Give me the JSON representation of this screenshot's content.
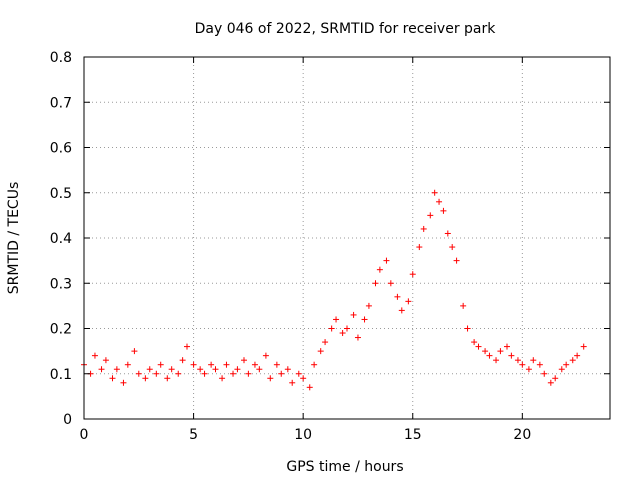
{
  "chart_data": {
    "type": "scatter",
    "title": "Day 046 of 2022, SRMTID for receiver park",
    "xlabel": "GPS time / hours",
    "ylabel": "SRMTID / TECUs",
    "xlim": [
      0,
      24
    ],
    "ylim": [
      0,
      0.8
    ],
    "xticks": [
      0,
      5,
      10,
      15,
      20
    ],
    "xtick_labels": [
      "0",
      "5",
      "10",
      "15",
      "20"
    ],
    "yticks": [
      0,
      0.1,
      0.2,
      0.3,
      0.4,
      0.5,
      0.6,
      0.7,
      0.8
    ],
    "ytick_labels": [
      "0",
      "0.1",
      "0.2",
      "0.3",
      "0.4",
      "0.5",
      "0.6",
      "0.7",
      "0.8"
    ],
    "grid": true,
    "marker": "plus",
    "marker_color": "#ff0000",
    "series": [
      {
        "name": "SRMTID",
        "x": [
          0.0,
          0.3,
          0.5,
          0.8,
          1.0,
          1.3,
          1.5,
          1.8,
          2.0,
          2.3,
          2.5,
          2.8,
          3.0,
          3.3,
          3.5,
          3.8,
          4.0,
          4.3,
          4.5,
          4.7,
          5.0,
          5.3,
          5.5,
          5.8,
          6.0,
          6.3,
          6.5,
          6.8,
          7.0,
          7.3,
          7.5,
          7.8,
          8.0,
          8.3,
          8.5,
          8.8,
          9.0,
          9.3,
          9.5,
          9.8,
          10.0,
          10.3,
          10.5,
          10.8,
          11.0,
          11.3,
          11.5,
          11.8,
          12.0,
          12.3,
          12.5,
          12.8,
          13.0,
          13.3,
          13.5,
          13.8,
          14.0,
          14.3,
          14.5,
          14.8,
          15.0,
          15.3,
          15.5,
          15.8,
          16.0,
          16.2,
          16.4,
          16.6,
          16.8,
          17.0,
          17.3,
          17.5,
          17.8,
          18.0,
          18.3,
          18.5,
          18.8,
          19.0,
          19.3,
          19.5,
          19.8,
          20.0,
          20.3,
          20.5,
          20.8,
          21.0,
          21.3,
          21.5,
          21.8,
          22.0,
          22.3,
          22.5,
          22.8
        ],
        "y": [
          0.12,
          0.1,
          0.14,
          0.11,
          0.13,
          0.09,
          0.11,
          0.08,
          0.12,
          0.15,
          0.1,
          0.09,
          0.11,
          0.1,
          0.12,
          0.09,
          0.11,
          0.1,
          0.13,
          0.16,
          0.12,
          0.11,
          0.1,
          0.12,
          0.11,
          0.09,
          0.12,
          0.1,
          0.11,
          0.13,
          0.1,
          0.12,
          0.11,
          0.14,
          0.09,
          0.12,
          0.1,
          0.11,
          0.08,
          0.1,
          0.09,
          0.07,
          0.12,
          0.15,
          0.17,
          0.2,
          0.22,
          0.19,
          0.2,
          0.23,
          0.18,
          0.22,
          0.25,
          0.3,
          0.33,
          0.35,
          0.3,
          0.27,
          0.24,
          0.26,
          0.32,
          0.38,
          0.42,
          0.45,
          0.5,
          0.48,
          0.46,
          0.41,
          0.38,
          0.35,
          0.25,
          0.2,
          0.17,
          0.16,
          0.15,
          0.14,
          0.13,
          0.15,
          0.16,
          0.14,
          0.13,
          0.12,
          0.11,
          0.13,
          0.12,
          0.1,
          0.08,
          0.09,
          0.11,
          0.12,
          0.13,
          0.14,
          0.16
        ]
      }
    ]
  }
}
